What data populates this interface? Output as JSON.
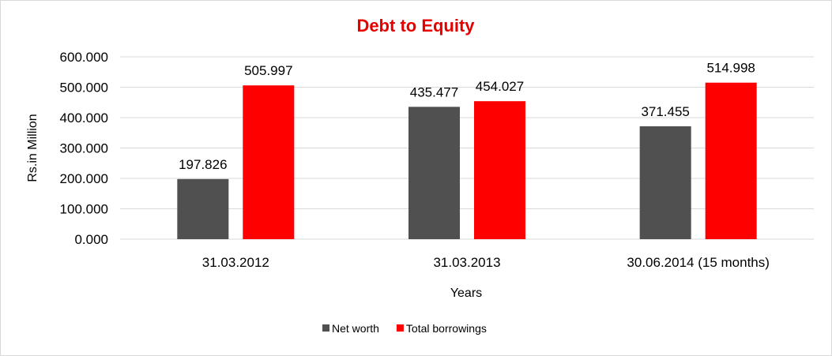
{
  "chart_data": {
    "type": "bar",
    "title": "Debt to Equity",
    "xlabel": "Years",
    "ylabel": "Rs.in Million",
    "categories": [
      "31.03.2012",
      "31.03.2013",
      "30.06.2014 (15 months)"
    ],
    "series": [
      {
        "name": "Net worth",
        "color": "#505050",
        "values": [
          197.826,
          435.477,
          371.455
        ],
        "labels": [
          "197.826",
          "435.477",
          "371.455"
        ]
      },
      {
        "name": "Total borrowings",
        "color": "#ff0000",
        "values": [
          505.997,
          454.027,
          514.998
        ],
        "labels": [
          "505.997",
          "454.027",
          "514.998"
        ]
      }
    ],
    "ylim": [
      0,
      600
    ],
    "yticks": [
      "0.000",
      "100.000",
      "200.000",
      "300.000",
      "400.000",
      "500.000",
      "600.000"
    ],
    "grid": true,
    "legend": "bottom",
    "title_color": "#e60000"
  }
}
